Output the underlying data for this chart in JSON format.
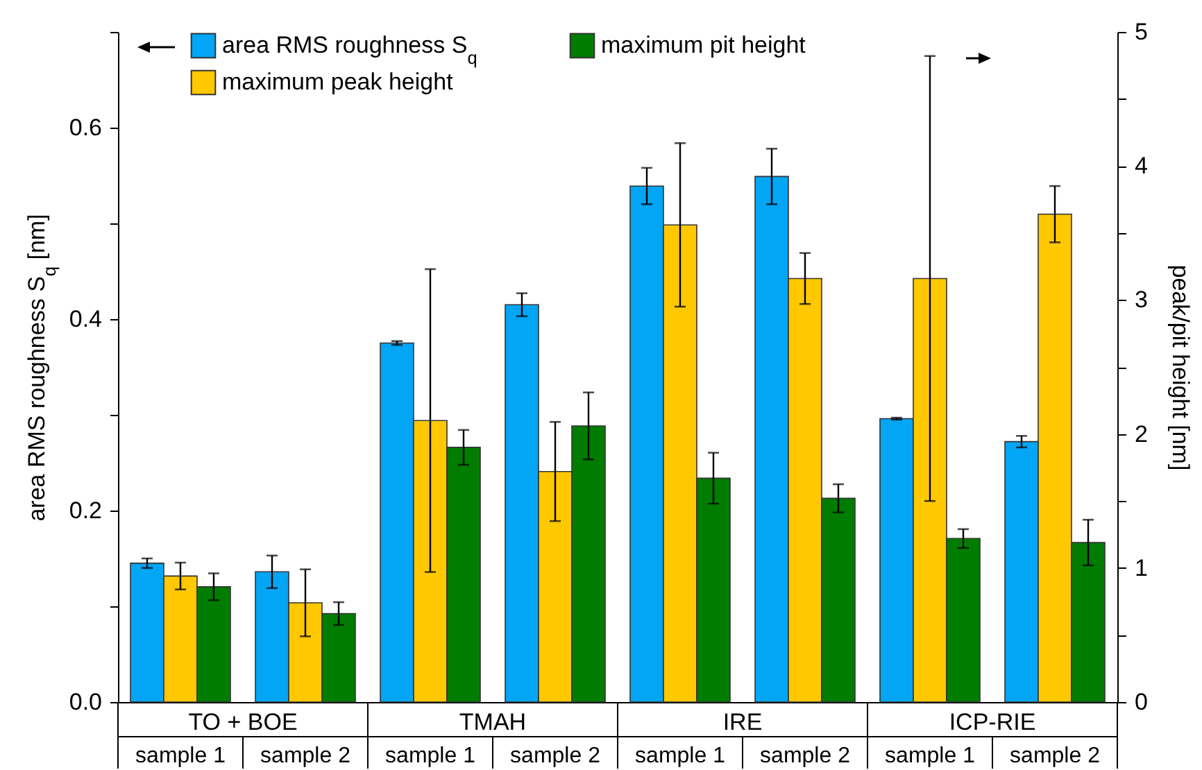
{
  "chart_data": {
    "type": "bar",
    "categories": [
      "sample 1",
      "sample 2",
      "sample 1",
      "sample 2",
      "sample 1",
      "sample 2",
      "sample 1",
      "sample 2"
    ],
    "series": [
      {
        "name": "area RMS roughness S$_{q}$",
        "color": "#03a5f5",
        "values": [
          0.145,
          0.136,
          0.375,
          0.415,
          0.539,
          0.549,
          0.296,
          0.272
        ],
        "errors": [
          0.005,
          0.017,
          0.002,
          0.012,
          0.019,
          0.029,
          0.001,
          0.006
        ]
      },
      {
        "name": "maximum peak height",
        "color": "#ffc800",
        "axis": "y2",
        "values": [
          0.94,
          0.74,
          2.1,
          1.72,
          3.56,
          3.16,
          3.16,
          3.64
        ],
        "errors": [
          0.1,
          0.25,
          1.13,
          0.37,
          0.61,
          0.19,
          1.66,
          0.21
        ]
      },
      {
        "name": "maximum pit height",
        "color": "#007d00",
        "axis": "y2",
        "values": [
          0.86,
          0.66,
          1.9,
          2.06,
          1.67,
          1.52,
          1.22,
          1.19
        ],
        "errors": [
          0.1,
          0.085,
          0.13,
          0.25,
          0.19,
          0.105,
          0.07,
          0.17
        ]
      }
    ],
    "ylabel": "area RMS roughness S$_{q}$  [nm]",
    "y2label": "peak/pit height [nm]",
    "ylim": [
      0,
      0.7
    ],
    "yticks": [
      {
        "value": 0,
        "label": "0.0"
      },
      {
        "value": 0.1,
        "label": null
      },
      0.2,
      {
        "value": 0.3,
        "label": null
      },
      0.4,
      {
        "value": 0.5,
        "label": null
      },
      0.6,
      {
        "value": 0.7,
        "label": null
      }
    ],
    "y2lim": [
      0,
      5
    ],
    "y2ticks": [
      0,
      {
        "value": 0.5,
        "label": null
      },
      1,
      {
        "value": 1.5,
        "label": null
      },
      2,
      {
        "value": 2.5,
        "label": null
      },
      3,
      {
        "value": 3.5,
        "label": null
      },
      4,
      {
        "value": 4.5,
        "label": null
      },
      5
    ],
    "annotations": [
      "TO + BOE",
      "TMAH",
      "IRE",
      "ICP-RIE"
    ],
    "legend": "top",
    "grid": false
  }
}
